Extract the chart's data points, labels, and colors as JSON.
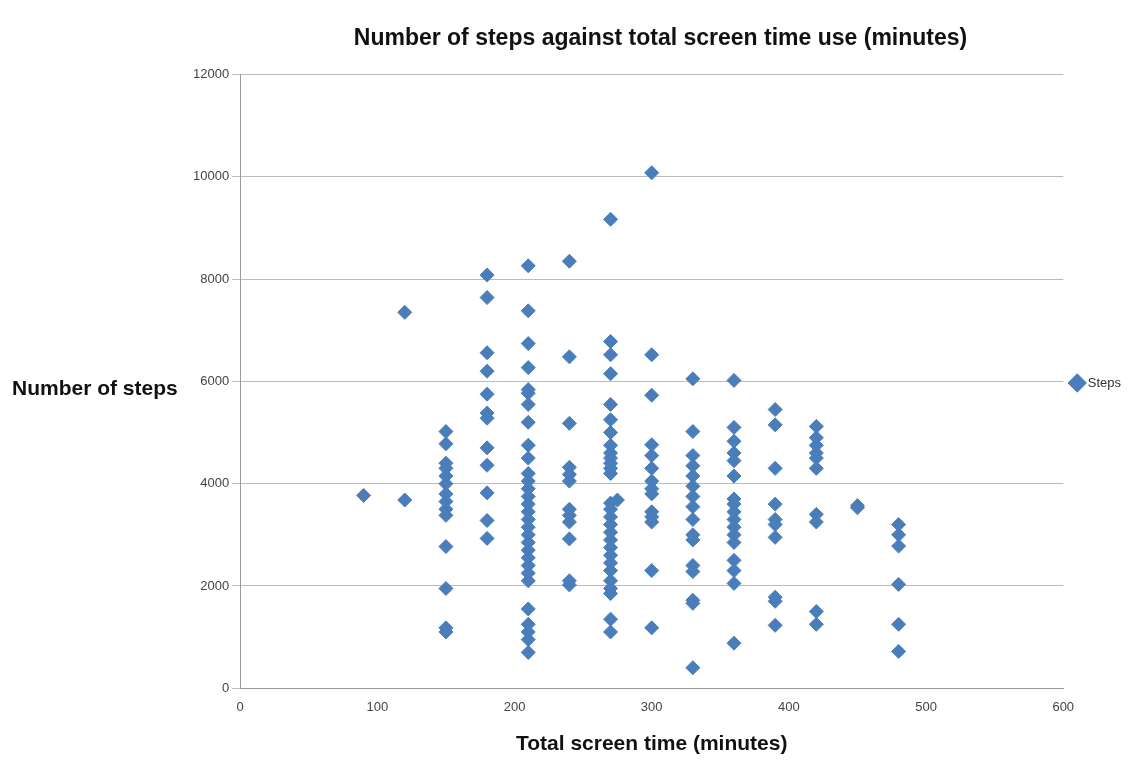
{
  "chart_data": {
    "type": "scatter",
    "title": "Number of steps against total screen time use (minutes)",
    "xlabel": "Total screen time (minutes)",
    "ylabel": "Number of steps",
    "xlim": [
      0,
      600
    ],
    "xticks": [
      0,
      100,
      200,
      300,
      400,
      500,
      600
    ],
    "ylim": [
      0,
      12000
    ],
    "yticks": [
      0,
      2000,
      4000,
      6000,
      8000,
      10000,
      12000
    ],
    "grid": "y",
    "legend": "right",
    "marker": "diamond",
    "series": [
      {
        "name": "Steps",
        "color": "#4a7ebb",
        "x": [
          90,
          120,
          120,
          150,
          150,
          150,
          150,
          150,
          150,
          150,
          150,
          150,
          150,
          150,
          150,
          150,
          150,
          180,
          180,
          180,
          180,
          180,
          180,
          180,
          180,
          180,
          180,
          180,
          180,
          210,
          210,
          210,
          210,
          210,
          210,
          210,
          210,
          210,
          210,
          210,
          210,
          210,
          210,
          210,
          210,
          210,
          210,
          210,
          210,
          210,
          210,
          210,
          210,
          210,
          210,
          210,
          210,
          210,
          210,
          240,
          240,
          240,
          240,
          240,
          240,
          240,
          240,
          240,
          240,
          240,
          240,
          270,
          270,
          270,
          270,
          270,
          270,
          270,
          270,
          270,
          270,
          270,
          270,
          270,
          270,
          270,
          270,
          270,
          270,
          270,
          270,
          270,
          270,
          270,
          270,
          270,
          270,
          270,
          270,
          275,
          300,
          300,
          300,
          300,
          300,
          300,
          300,
          300,
          300,
          300,
          300,
          300,
          300,
          300,
          330,
          330,
          330,
          330,
          330,
          330,
          330,
          330,
          330,
          330,
          330,
          330,
          330,
          330,
          330,
          330,
          360,
          360,
          360,
          360,
          360,
          360,
          360,
          360,
          360,
          360,
          360,
          360,
          360,
          360,
          360,
          360,
          360,
          390,
          390,
          390,
          390,
          390,
          390,
          390,
          390,
          390,
          390,
          420,
          420,
          420,
          420,
          420,
          420,
          420,
          420,
          420,
          420,
          450,
          450,
          480,
          480,
          480,
          480,
          480,
          480
        ],
        "values": [
          3770,
          7350,
          3680,
          5020,
          4780,
          4400,
          4300,
          4150,
          4000,
          3800,
          3650,
          3500,
          3380,
          2770,
          1950,
          1180,
          1100,
          8080,
          7640,
          6560,
          6200,
          5750,
          5380,
          5280,
          4700,
          4360,
          3820,
          3280,
          2930,
          8260,
          7380,
          6740,
          6270,
          5840,
          5770,
          5550,
          5200,
          4750,
          4500,
          4200,
          4050,
          3900,
          3750,
          3600,
          3450,
          3300,
          3150,
          3000,
          2850,
          2700,
          2550,
          2400,
          2250,
          2100,
          1550,
          1250,
          1100,
          950,
          700,
          8350,
          6480,
          5180,
          4320,
          4180,
          4050,
          3500,
          3380,
          3250,
          2920,
          2100,
          2020,
          9170,
          6780,
          6520,
          6150,
          5550,
          5250,
          5000,
          4750,
          4600,
          4500,
          4400,
          4300,
          4200,
          3620,
          3500,
          3350,
          3200,
          3050,
          2900,
          2750,
          2600,
          2450,
          2300,
          2100,
          1950,
          1850,
          1350,
          1100,
          3680,
          10080,
          6520,
          5730,
          4760,
          4550,
          4300,
          4050,
          3900,
          3800,
          3450,
          3350,
          3250,
          2300,
          1180,
          6050,
          5020,
          4550,
          4350,
          4150,
          3950,
          3750,
          3550,
          3300,
          3000,
          2900,
          2400,
          2280,
          1720,
          1660,
          400,
          6020,
          5100,
          4830,
          4600,
          4450,
          4150,
          3700,
          3600,
          3450,
          3300,
          3150,
          3000,
          2850,
          2500,
          2300,
          2050,
          880,
          5450,
          5150,
          4300,
          3600,
          3300,
          3200,
          2950,
          1780,
          1700,
          1230,
          5120,
          4900,
          4750,
          4600,
          4500,
          4300,
          3400,
          3250,
          1500,
          1250,
          3570,
          3530,
          3200,
          3000,
          2780,
          2030,
          1250,
          720
        ]
      }
    ]
  }
}
